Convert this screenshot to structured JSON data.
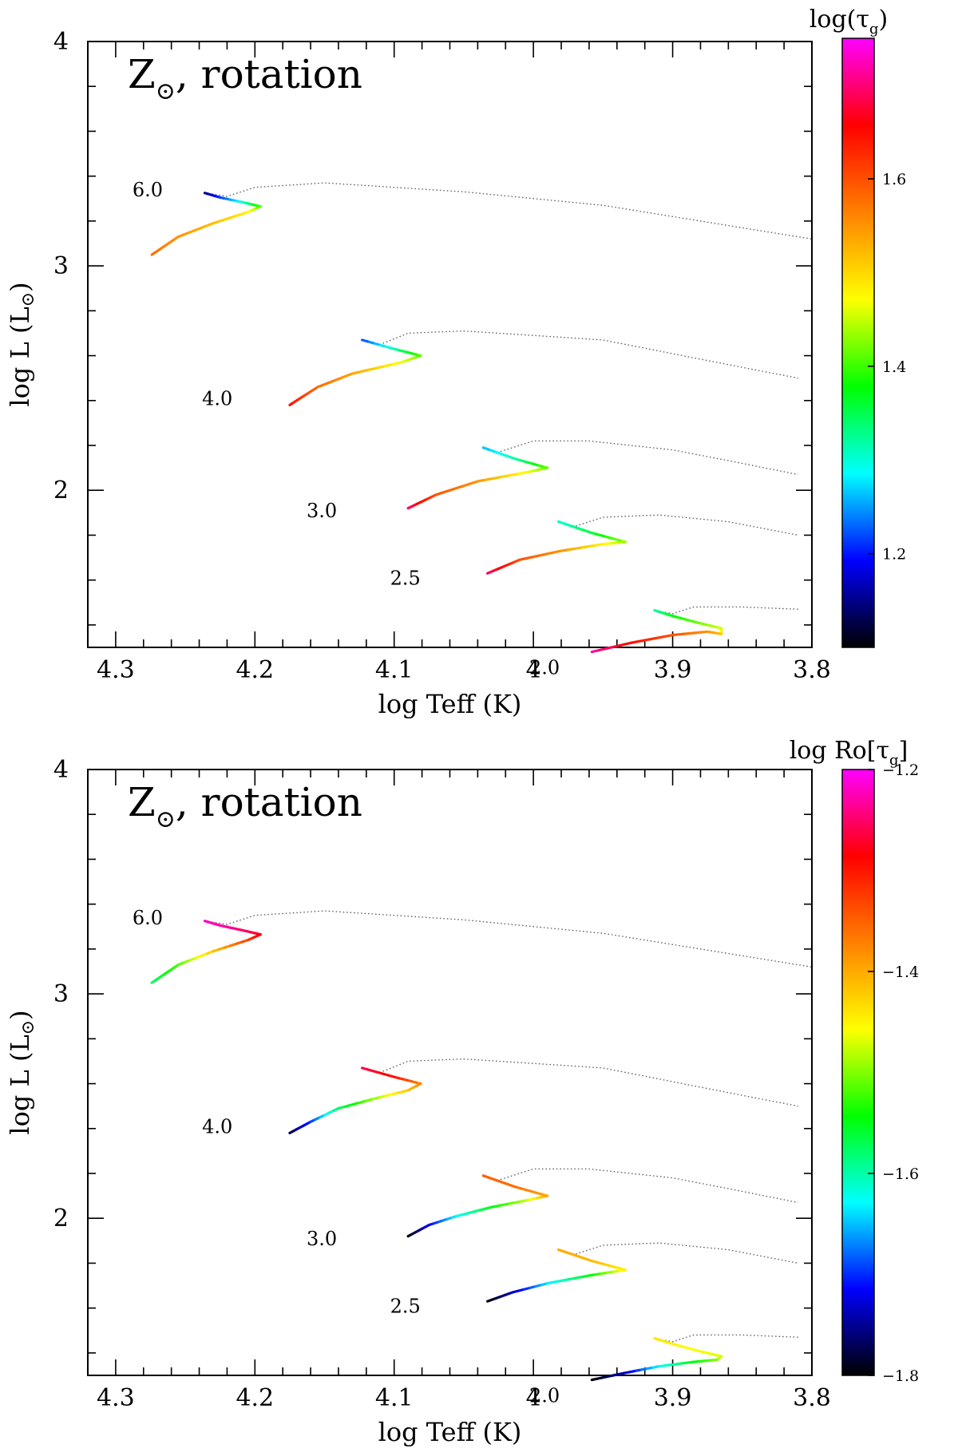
{
  "colors": {
    "frame": "#000000",
    "dotted_track": "#555555",
    "colormap": [
      "#000000",
      "#0000ff",
      "#00ffff",
      "#00ff00",
      "#ffff00",
      "#ff8000",
      "#ff0000",
      "#ff00ff"
    ]
  },
  "chart_data": [
    {
      "type": "line",
      "title_main": "Z",
      "title_symbol": "⊙",
      "title_rest": ", rotation",
      "xlabel": "log Teff (K)",
      "ylabel_main": "log L (L",
      "ylabel_symbol": "⊙",
      "ylabel_close": ")",
      "xlim": [
        4.32,
        3.8
      ],
      "ylim": [
        1.3,
        4.0
      ],
      "xticks": [
        {
          "value": 4.3,
          "label": "4.3"
        },
        {
          "value": 4.2,
          "label": "4.2"
        },
        {
          "value": 4.1,
          "label": "4.1"
        },
        {
          "value": 4.0,
          "label": "4"
        },
        {
          "value": 3.9,
          "label": "3.9"
        },
        {
          "value": 3.8,
          "label": "3.8"
        }
      ],
      "yticks": [
        {
          "value": 2,
          "label": "2"
        },
        {
          "value": 3,
          "label": "3"
        },
        {
          "value": 4,
          "label": "4"
        }
      ],
      "colorbar": {
        "title": "log(τ",
        "title_sub": "g",
        "title_close": ")",
        "range": [
          1.1,
          1.75
        ],
        "ticks": [
          {
            "value": 1.2,
            "label": "1.2"
          },
          {
            "value": 1.4,
            "label": "1.4"
          },
          {
            "value": 1.6,
            "label": "1.6"
          }
        ]
      },
      "tracks": [
        {
          "mass": "6.0",
          "label_pos": [
            4.277,
            3.31
          ],
          "colored_points": [
            {
              "x": 4.274,
              "y": 3.05,
              "c": 1.58
            },
            {
              "x": 4.255,
              "y": 3.13,
              "c": 1.55
            },
            {
              "x": 4.23,
              "y": 3.19,
              "c": 1.52
            },
            {
              "x": 4.205,
              "y": 3.24,
              "c": 1.48
            },
            {
              "x": 4.196,
              "y": 3.265,
              "c": 1.42
            },
            {
              "x": 4.21,
              "y": 3.285,
              "c": 1.3
            },
            {
              "x": 4.225,
              "y": 3.305,
              "c": 1.22
            },
            {
              "x": 4.236,
              "y": 3.325,
              "c": 1.15
            }
          ],
          "dotted_points": [
            {
              "x": 4.236,
              "y": 3.325
            },
            {
              "x": 4.22,
              "y": 3.31
            },
            {
              "x": 4.2,
              "y": 3.35
            },
            {
              "x": 4.15,
              "y": 3.37
            },
            {
              "x": 4.05,
              "y": 3.33
            },
            {
              "x": 3.95,
              "y": 3.27
            },
            {
              "x": 3.8,
              "y": 3.12
            }
          ]
        },
        {
          "mass": "4.0",
          "label_pos": [
            4.227,
            2.38
          ],
          "colored_points": [
            {
              "x": 4.175,
              "y": 2.38,
              "c": 1.65
            },
            {
              "x": 4.155,
              "y": 2.46,
              "c": 1.58
            },
            {
              "x": 4.13,
              "y": 2.52,
              "c": 1.54
            },
            {
              "x": 4.095,
              "y": 2.57,
              "c": 1.47
            },
            {
              "x": 4.081,
              "y": 2.6,
              "c": 1.42
            },
            {
              "x": 4.1,
              "y": 2.63,
              "c": 1.32
            },
            {
              "x": 4.123,
              "y": 2.67,
              "c": 1.22
            }
          ],
          "dotted_points": [
            {
              "x": 4.123,
              "y": 2.67
            },
            {
              "x": 4.11,
              "y": 2.65
            },
            {
              "x": 4.09,
              "y": 2.7
            },
            {
              "x": 4.05,
              "y": 2.71
            },
            {
              "x": 3.95,
              "y": 2.67
            },
            {
              "x": 3.86,
              "y": 2.56
            },
            {
              "x": 3.81,
              "y": 2.5
            }
          ]
        },
        {
          "mass": "3.0",
          "label_pos": [
            4.152,
            1.88
          ],
          "colored_points": [
            {
              "x": 4.09,
              "y": 1.92,
              "c": 1.7
            },
            {
              "x": 4.07,
              "y": 1.98,
              "c": 1.6
            },
            {
              "x": 4.04,
              "y": 2.04,
              "c": 1.55
            },
            {
              "x": 4.005,
              "y": 2.08,
              "c": 1.47
            },
            {
              "x": 3.99,
              "y": 2.1,
              "c": 1.42
            },
            {
              "x": 4.013,
              "y": 2.14,
              "c": 1.32
            },
            {
              "x": 4.036,
              "y": 2.19,
              "c": 1.26
            }
          ],
          "dotted_points": [
            {
              "x": 4.036,
              "y": 2.19
            },
            {
              "x": 4.025,
              "y": 2.17
            },
            {
              "x": 4.0,
              "y": 2.22
            },
            {
              "x": 3.96,
              "y": 2.22
            },
            {
              "x": 3.9,
              "y": 2.18
            },
            {
              "x": 3.85,
              "y": 2.12
            },
            {
              "x": 3.81,
              "y": 2.07
            }
          ]
        },
        {
          "mass": "2.5",
          "label_pos": [
            4.092,
            1.58
          ],
          "colored_points": [
            {
              "x": 4.033,
              "y": 1.63,
              "c": 1.7
            },
            {
              "x": 4.01,
              "y": 1.69,
              "c": 1.6
            },
            {
              "x": 3.98,
              "y": 1.73,
              "c": 1.55
            },
            {
              "x": 3.95,
              "y": 1.76,
              "c": 1.48
            },
            {
              "x": 3.934,
              "y": 1.77,
              "c": 1.44
            },
            {
              "x": 3.958,
              "y": 1.81,
              "c": 1.36
            },
            {
              "x": 3.982,
              "y": 1.86,
              "c": 1.3
            }
          ],
          "dotted_points": [
            {
              "x": 3.982,
              "y": 1.86
            },
            {
              "x": 3.97,
              "y": 1.84
            },
            {
              "x": 3.95,
              "y": 1.88
            },
            {
              "x": 3.91,
              "y": 1.89
            },
            {
              "x": 3.86,
              "y": 1.86
            },
            {
              "x": 3.81,
              "y": 1.8
            }
          ]
        },
        {
          "mass": "2.0",
          "label_pos": [
            3.992,
            1.18
          ],
          "colored_points": [
            {
              "x": 3.958,
              "y": 1.28,
              "c": 1.72
            },
            {
              "x": 3.93,
              "y": 1.32,
              "c": 1.65
            },
            {
              "x": 3.9,
              "y": 1.355,
              "c": 1.6
            },
            {
              "x": 3.875,
              "y": 1.37,
              "c": 1.55
            },
            {
              "x": 3.865,
              "y": 1.36,
              "c": 1.52
            },
            {
              "x": 3.865,
              "y": 1.385,
              "c": 1.46
            },
            {
              "x": 3.882,
              "y": 1.41,
              "c": 1.42
            },
            {
              "x": 3.9,
              "y": 1.44,
              "c": 1.38
            },
            {
              "x": 3.913,
              "y": 1.465,
              "c": 1.32
            }
          ],
          "dotted_points": [
            {
              "x": 3.913,
              "y": 1.465
            },
            {
              "x": 3.9,
              "y": 1.45
            },
            {
              "x": 3.885,
              "y": 1.48
            },
            {
              "x": 3.85,
              "y": 1.48
            },
            {
              "x": 3.81,
              "y": 1.47
            }
          ]
        }
      ]
    },
    {
      "type": "line",
      "title_main": "Z",
      "title_symbol": "⊙",
      "title_rest": ", rotation",
      "xlabel": "log Teff (K)",
      "ylabel_main": "log L (L",
      "ylabel_symbol": "⊙",
      "ylabel_close": ")",
      "xlim": [
        4.32,
        3.8
      ],
      "ylim": [
        1.3,
        4.0
      ],
      "xticks": [
        {
          "value": 4.3,
          "label": "4.3"
        },
        {
          "value": 4.2,
          "label": "4.2"
        },
        {
          "value": 4.1,
          "label": "4.1"
        },
        {
          "value": 4.0,
          "label": "4"
        },
        {
          "value": 3.9,
          "label": "3.9"
        },
        {
          "value": 3.8,
          "label": "3.8"
        }
      ],
      "yticks": [
        {
          "value": 2,
          "label": "2"
        },
        {
          "value": 3,
          "label": "3"
        },
        {
          "value": 4,
          "label": "4"
        }
      ],
      "colorbar": {
        "title": "log Ro[τ",
        "title_sub": "g",
        "title_close": "]",
        "range": [
          -1.8,
          -1.2
        ],
        "ticks": [
          {
            "value": -1.8,
            "label": "−1.8"
          },
          {
            "value": -1.6,
            "label": "−1.6"
          },
          {
            "value": -1.4,
            "label": "−1.4"
          },
          {
            "value": -1.2,
            "label": "−1.2"
          }
        ]
      },
      "tracks": [
        {
          "mass": "6.0",
          "label_pos": [
            4.277,
            3.31
          ],
          "colored_points": [
            {
              "x": 4.274,
              "y": 3.05,
              "c": -1.58
            },
            {
              "x": 4.255,
              "y": 3.13,
              "c": -1.52
            },
            {
              "x": 4.23,
              "y": 3.19,
              "c": -1.42
            },
            {
              "x": 4.205,
              "y": 3.24,
              "c": -1.33
            },
            {
              "x": 4.196,
              "y": 3.265,
              "c": -1.28
            },
            {
              "x": 4.21,
              "y": 3.285,
              "c": -1.25
            },
            {
              "x": 4.225,
              "y": 3.305,
              "c": -1.23
            },
            {
              "x": 4.236,
              "y": 3.325,
              "c": -1.22
            }
          ],
          "dotted_points": [
            {
              "x": 4.236,
              "y": 3.325
            },
            {
              "x": 4.22,
              "y": 3.31
            },
            {
              "x": 4.2,
              "y": 3.35
            },
            {
              "x": 4.15,
              "y": 3.37
            },
            {
              "x": 4.05,
              "y": 3.33
            },
            {
              "x": 3.95,
              "y": 3.27
            },
            {
              "x": 3.8,
              "y": 3.12
            }
          ]
        },
        {
          "mass": "4.0",
          "label_pos": [
            4.227,
            2.38
          ],
          "colored_points": [
            {
              "x": 4.175,
              "y": 2.38,
              "c": -1.78
            },
            {
              "x": 4.16,
              "y": 2.43,
              "c": -1.7
            },
            {
              "x": 4.14,
              "y": 2.49,
              "c": -1.58
            },
            {
              "x": 4.11,
              "y": 2.54,
              "c": -1.48
            },
            {
              "x": 4.09,
              "y": 2.57,
              "c": -1.42
            },
            {
              "x": 4.081,
              "y": 2.6,
              "c": -1.38
            },
            {
              "x": 4.1,
              "y": 2.63,
              "c": -1.3
            },
            {
              "x": 4.123,
              "y": 2.67,
              "c": -1.26
            }
          ],
          "dotted_points": [
            {
              "x": 4.123,
              "y": 2.67
            },
            {
              "x": 4.11,
              "y": 2.65
            },
            {
              "x": 4.09,
              "y": 2.7
            },
            {
              "x": 4.05,
              "y": 2.71
            },
            {
              "x": 3.95,
              "y": 2.67
            },
            {
              "x": 3.86,
              "y": 2.56
            },
            {
              "x": 3.81,
              "y": 2.5
            }
          ]
        },
        {
          "mass": "3.0",
          "label_pos": [
            4.152,
            1.88
          ],
          "colored_points": [
            {
              "x": 4.09,
              "y": 1.92,
              "c": -1.8
            },
            {
              "x": 4.075,
              "y": 1.97,
              "c": -1.72
            },
            {
              "x": 4.055,
              "y": 2.01,
              "c": -1.63
            },
            {
              "x": 4.03,
              "y": 2.05,
              "c": -1.55
            },
            {
              "x": 4.005,
              "y": 2.08,
              "c": -1.48
            },
            {
              "x": 3.99,
              "y": 2.1,
              "c": -1.4
            },
            {
              "x": 4.013,
              "y": 2.14,
              "c": -1.36
            },
            {
              "x": 4.036,
              "y": 2.19,
              "c": -1.35
            }
          ],
          "dotted_points": [
            {
              "x": 4.036,
              "y": 2.19
            },
            {
              "x": 4.025,
              "y": 2.17
            },
            {
              "x": 4.0,
              "y": 2.22
            },
            {
              "x": 3.96,
              "y": 2.22
            },
            {
              "x": 3.9,
              "y": 2.18
            },
            {
              "x": 3.85,
              "y": 2.12
            },
            {
              "x": 3.81,
              "y": 2.07
            }
          ]
        },
        {
          "mass": "2.5",
          "label_pos": [
            4.092,
            1.58
          ],
          "colored_points": [
            {
              "x": 4.033,
              "y": 1.63,
              "c": -1.8
            },
            {
              "x": 4.015,
              "y": 1.67,
              "c": -1.74
            },
            {
              "x": 3.99,
              "y": 1.71,
              "c": -1.64
            },
            {
              "x": 3.96,
              "y": 1.745,
              "c": -1.55
            },
            {
              "x": 3.934,
              "y": 1.77,
              "c": -1.45
            },
            {
              "x": 3.958,
              "y": 1.81,
              "c": -1.41
            },
            {
              "x": 3.982,
              "y": 1.86,
              "c": -1.4
            }
          ],
          "dotted_points": [
            {
              "x": 3.982,
              "y": 1.86
            },
            {
              "x": 3.97,
              "y": 1.84
            },
            {
              "x": 3.95,
              "y": 1.88
            },
            {
              "x": 3.91,
              "y": 1.89
            },
            {
              "x": 3.86,
              "y": 1.86
            },
            {
              "x": 3.81,
              "y": 1.8
            }
          ]
        },
        {
          "mass": "2.0",
          "label_pos": [
            3.992,
            1.18
          ],
          "colored_points": [
            {
              "x": 3.958,
              "y": 1.28,
              "c": -1.8
            },
            {
              "x": 3.935,
              "y": 1.31,
              "c": -1.74
            },
            {
              "x": 3.91,
              "y": 1.34,
              "c": -1.63
            },
            {
              "x": 3.885,
              "y": 1.36,
              "c": -1.55
            },
            {
              "x": 3.868,
              "y": 1.37,
              "c": -1.5
            },
            {
              "x": 3.865,
              "y": 1.385,
              "c": -1.47
            },
            {
              "x": 3.882,
              "y": 1.41,
              "c": -1.46
            },
            {
              "x": 3.9,
              "y": 1.44,
              "c": -1.45
            },
            {
              "x": 3.913,
              "y": 1.465,
              "c": -1.44
            }
          ],
          "dotted_points": [
            {
              "x": 3.913,
              "y": 1.465
            },
            {
              "x": 3.9,
              "y": 1.45
            },
            {
              "x": 3.885,
              "y": 1.48
            },
            {
              "x": 3.85,
              "y": 1.48
            },
            {
              "x": 3.81,
              "y": 1.47
            }
          ]
        }
      ]
    }
  ]
}
